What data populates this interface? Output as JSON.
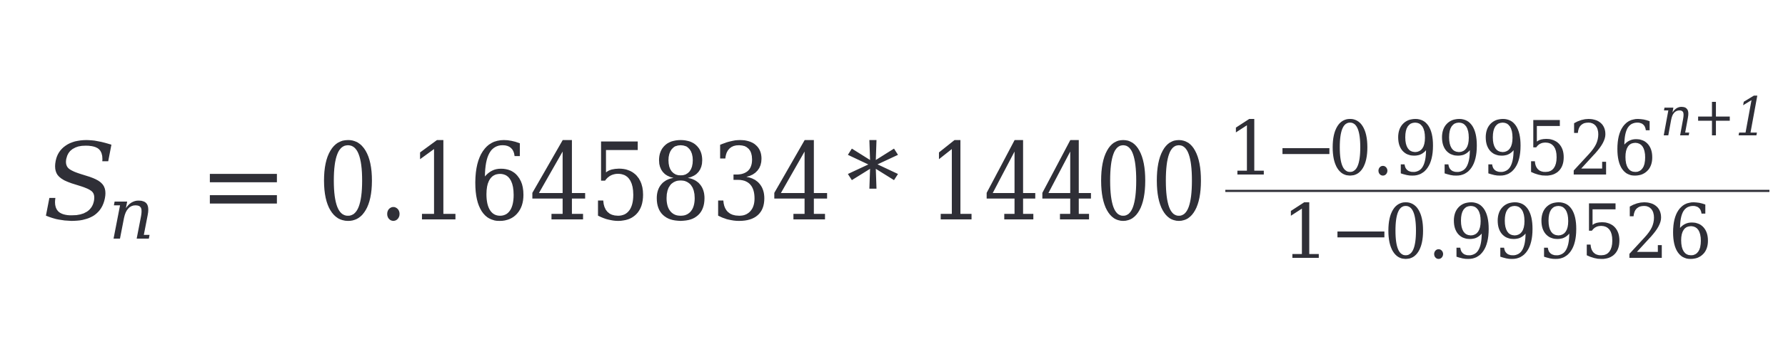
{
  "formula": {
    "lhs": {
      "symbol": "S",
      "subscript": "n"
    },
    "equals": "=",
    "coefficient": "0.1645834",
    "operator": "*",
    "base": "14400",
    "exponent": {
      "numerator": {
        "one": "1",
        "minus": "−",
        "value": "0.999526",
        "power": "n+1"
      },
      "denominator": {
        "one": "1",
        "minus": "−",
        "value": "0.999526"
      }
    }
  }
}
